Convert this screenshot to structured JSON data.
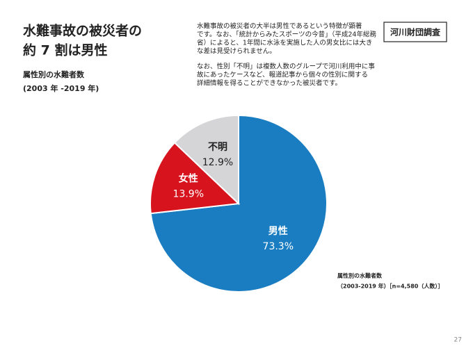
{
  "header": {
    "title": [
      "水難事故の被災者の",
      "約 7 割は男性"
    ],
    "subtitle": [
      "属性別の水難者数",
      "(2003 年 -2019 年)"
    ],
    "badge": "河川財団調査"
  },
  "body": {
    "paragraphs": [
      [
        "水難事故の被災者の大半は男性であるという特徴が顕著",
        "です。なお、「統計からみたスポーツの今昔」（平成24年総務",
        "省）によると、1年間に水泳を実施した人の男女比には大き",
        "な差は見受けられません。"
      ],
      [
        "なお、性別「不明」は複数人数のグループで河川利用中に事",
        "故にあったケースなど、報道記事から個々の性別に関する",
        "詳細情報を得ることができなかった被災者です。"
      ]
    ]
  },
  "chart_data": {
    "type": "pie",
    "categories": [
      "男性",
      "女性",
      "不明"
    ],
    "values": [
      73.3,
      13.9,
      12.9
    ],
    "value_labels": [
      "73.3%",
      "13.9%",
      "12.9%"
    ],
    "colors": [
      "#1b7dc1",
      "#d7141e",
      "#d5d5d7"
    ]
  },
  "note": [
    "属性別の水難者数",
    "（2003-2019 年）［n=4,580（人数）］"
  ],
  "page_number": "27"
}
